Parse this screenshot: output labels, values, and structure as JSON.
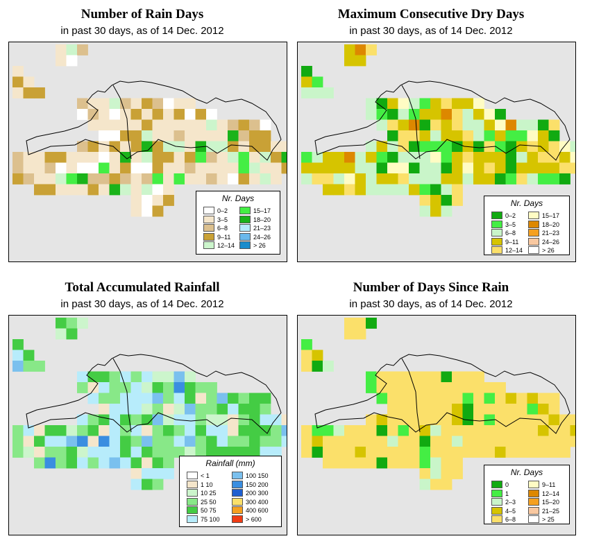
{
  "panels": [
    {
      "id": "rain-days",
      "title": "Number of Rain Days",
      "subtitle": "in past 30 days, as of  14 Dec. 2012",
      "legend": {
        "title": "Nr. Days",
        "items": [
          {
            "label": "0–2",
            "color": "#ffffff"
          },
          {
            "label": "3–5",
            "color": "#f5e6cb"
          },
          {
            "label": "6–8",
            "color": "#dcc08e"
          },
          {
            "label": "9–11",
            "color": "#c9a136"
          },
          {
            "label": "12–14",
            "color": "#ccf5cc"
          },
          {
            "label": "15–17",
            "color": "#44ee44"
          },
          {
            "label": "18–20",
            "color": "#1ab31a"
          },
          {
            "label": "21–23",
            "color": "#b7ecfb"
          },
          {
            "label": "24–26",
            "color": "#6ab9ec"
          },
          {
            "label": "> 26",
            "color": "#1a8ccc"
          }
        ]
      }
    },
    {
      "id": "dry-days",
      "title": "Maximum Consecutive Dry Days",
      "subtitle": "in past 30 days, as of  14 Dec. 2012",
      "legend": {
        "title": "Nr. Days",
        "items": [
          {
            "label": "0–2",
            "color": "#11aa11"
          },
          {
            "label": "3–5",
            "color": "#44ee44"
          },
          {
            "label": "6–8",
            "color": "#c9f5c9"
          },
          {
            "label": "9–11",
            "color": "#d6c400"
          },
          {
            "label": "12–14",
            "color": "#fbe06a"
          },
          {
            "label": "15–17",
            "color": "#fffcc4"
          },
          {
            "label": "18–20",
            "color": "#dd8800"
          },
          {
            "label": "21–23",
            "color": "#f5a020"
          },
          {
            "label": "24–26",
            "color": "#f9c8a0"
          },
          {
            "label": "> 26",
            "color": "#ffffff"
          }
        ]
      }
    },
    {
      "id": "rainfall",
      "title": "Total Accumulated Rainfall",
      "subtitle": "in past 30 days, as of  14 Dec. 2012",
      "legend": {
        "title": "Rainfall (mm)",
        "items": [
          {
            "label": "< 1",
            "color": "#ffffff"
          },
          {
            "label": "1    10",
            "color": "#f5e6cb"
          },
          {
            "label": "10   25",
            "color": "#ccf5cc"
          },
          {
            "label": "25   50",
            "color": "#88e888"
          },
          {
            "label": "50   75",
            "color": "#44cc44"
          },
          {
            "label": "75  100",
            "color": "#b7ecfb"
          },
          {
            "label": "100  150",
            "color": "#7ac0ee"
          },
          {
            "label": "150  200",
            "color": "#3a8ee0"
          },
          {
            "label": "200  300",
            "color": "#1f5fd0"
          },
          {
            "label": "300  400",
            "color": "#fbe06a"
          },
          {
            "label": "400  600",
            "color": "#f5a020"
          },
          {
            "label": "> 600",
            "color": "#f03c14"
          }
        ]
      }
    },
    {
      "id": "since-rain",
      "title": "Number of Days Since Rain",
      "subtitle": "in past 30 days, as of  14 Dec. 2012",
      "legend": {
        "title": "Nr. Days",
        "items": [
          {
            "label": "0",
            "color": "#11aa11"
          },
          {
            "label": "1",
            "color": "#44ee44"
          },
          {
            "label": "2–3",
            "color": "#c9f5c9"
          },
          {
            "label": "4–5",
            "color": "#d6c400"
          },
          {
            "label": "6–8",
            "color": "#fbe06a"
          },
          {
            "label": "9–11",
            "color": "#fffcc4"
          },
          {
            "label": "12–14",
            "color": "#dd8800"
          },
          {
            "label": "15–20",
            "color": "#f5a020"
          },
          {
            "label": "21–25",
            "color": "#f9c8a0"
          },
          {
            "label": "> 25",
            "color": "#ffffff"
          }
        ]
      }
    }
  ]
}
